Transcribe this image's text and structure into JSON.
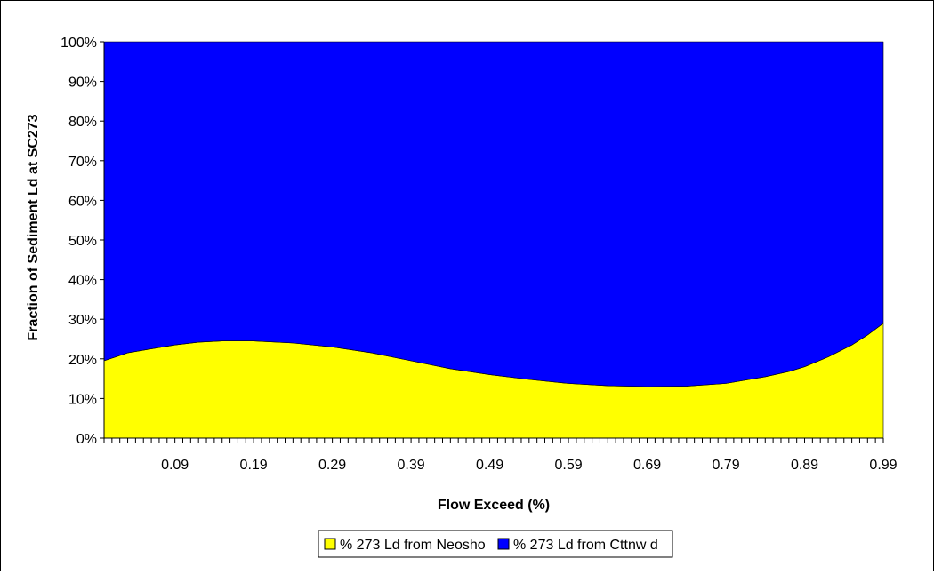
{
  "chart_data": {
    "type": "area",
    "stacked": true,
    "stack_mode": "percent",
    "xlabel": "Flow Exceed (%)",
    "ylabel": "Fraction of Sediment Ld at SC273",
    "x_tick_labels": [
      "0.09",
      "0.19",
      "0.29",
      "0.39",
      "0.49",
      "0.59",
      "0.69",
      "0.79",
      "0.89",
      "0.99"
    ],
    "y_tick_labels": [
      "0%",
      "10%",
      "20%",
      "30%",
      "40%",
      "50%",
      "60%",
      "70%",
      "80%",
      "90%",
      "100%"
    ],
    "ylim": [
      0,
      100
    ],
    "xlim": [
      0,
      0.99
    ],
    "grid": false,
    "legend_position": "bottom-center",
    "x": [
      0.0,
      0.03,
      0.06,
      0.09,
      0.12,
      0.15,
      0.19,
      0.24,
      0.29,
      0.34,
      0.39,
      0.44,
      0.49,
      0.54,
      0.59,
      0.64,
      0.69,
      0.74,
      0.79,
      0.84,
      0.87,
      0.89,
      0.92,
      0.95,
      0.97,
      0.99
    ],
    "series": [
      {
        "name": "% 273 Ld from Neosho",
        "color": "#FFFF00",
        "values": [
          19.5,
          21.5,
          22.5,
          23.5,
          24.2,
          24.5,
          24.5,
          24.0,
          23.0,
          21.5,
          19.5,
          17.5,
          16.0,
          14.8,
          13.8,
          13.2,
          13.0,
          13.1,
          13.8,
          15.5,
          16.8,
          18.0,
          20.5,
          23.5,
          26.0,
          29.0
        ]
      },
      {
        "name": "% 273 Ld from Cttnw d",
        "color": "#0000FF",
        "values": [
          80.5,
          78.5,
          77.5,
          76.5,
          75.8,
          75.5,
          75.5,
          76.0,
          77.0,
          78.5,
          80.5,
          82.5,
          84.0,
          85.2,
          86.2,
          86.8,
          87.0,
          86.9,
          86.2,
          84.5,
          83.2,
          82.0,
          79.5,
          76.5,
          74.0,
          71.0
        ]
      }
    ]
  }
}
